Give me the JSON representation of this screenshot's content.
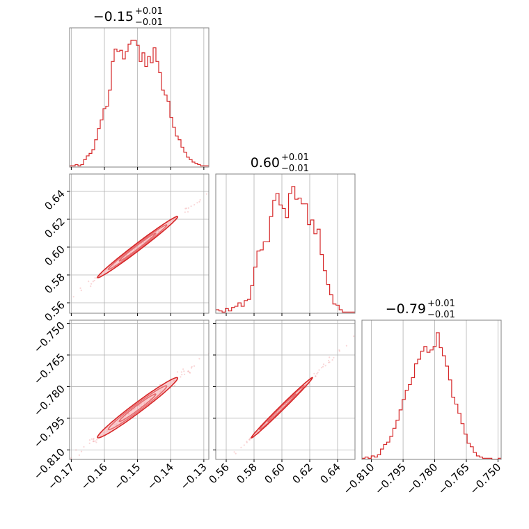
{
  "chart_data": {
    "type": "corner",
    "series_color": "#d62728",
    "parameters": [
      {
        "title_main": "−0.15",
        "title_sup": "+0.01",
        "title_sub": "−0.01",
        "median": -0.15,
        "sigma": 0.0055,
        "range": [
          -0.1705,
          -0.1285
        ],
        "ticks": [
          -0.17,
          -0.16,
          -0.15,
          -0.14,
          -0.13
        ],
        "tick_labels": [
          "−0.17",
          "−0.16",
          "−0.15",
          "−0.14",
          "−0.13"
        ],
        "hist": [
          1,
          1,
          2,
          1,
          2,
          6,
          9,
          11,
          14,
          22,
          31,
          38,
          47,
          49,
          62,
          85,
          95,
          93,
          94,
          87,
          93,
          99,
          102,
          102,
          98,
          85,
          92,
          81,
          89,
          84,
          96,
          85,
          76,
          62,
          58,
          53,
          40,
          32,
          25,
          22,
          16,
          12,
          8,
          6,
          4,
          3,
          2,
          1,
          1,
          1
        ]
      },
      {
        "title_main": "0.60",
        "title_sup": "+0.01",
        "title_sub": "−0.01",
        "median": 0.6,
        "sigma": 0.01,
        "range": [
          0.5525,
          0.6525
        ],
        "ticks": [
          0.56,
          0.58,
          0.6,
          0.62,
          0.64
        ],
        "tick_labels": [
          "0.56",
          "0.58",
          "0.60",
          "0.62",
          "0.64"
        ],
        "y_ticks": [
          0.56,
          0.58,
          0.6,
          0.62,
          0.64
        ],
        "hist": [
          3,
          2,
          1,
          4,
          2,
          5,
          6,
          9,
          6,
          11,
          12,
          24,
          40,
          54,
          55,
          62,
          62,
          84,
          98,
          104,
          94,
          91,
          83,
          104,
          110,
          99,
          100,
          95,
          95,
          77,
          81,
          69,
          73,
          51,
          37,
          25,
          16,
          8,
          7,
          3,
          1,
          1,
          1,
          1
        ]
      },
      {
        "title_main": "−0.79",
        "title_sup": "+0.01",
        "title_sub": "−0.01",
        "median": -0.79,
        "sigma": 0.0065,
        "range": [
          -0.8145,
          -0.7485
        ],
        "ticks": [
          -0.81,
          -0.795,
          -0.78,
          -0.765,
          -0.75
        ],
        "tick_labels": [
          "−0.810",
          "−0.795",
          "−0.780",
          "−0.765",
          "−0.750"
        ],
        "hist": [
          1,
          2,
          1,
          3,
          2,
          4,
          9,
          13,
          15,
          20,
          27,
          34,
          43,
          52,
          60,
          65,
          71,
          83,
          87,
          94,
          98,
          93,
          95,
          98,
          110,
          97,
          90,
          81,
          69,
          54,
          48,
          40,
          31,
          22,
          14,
          11,
          6,
          3,
          2,
          1,
          1,
          1,
          0,
          0,
          1
        ]
      }
    ],
    "y_tick_labels_row1": [
      "0.56",
      "0.58",
      "0.60",
      "0.62",
      "0.64"
    ],
    "y_tick_labels_row2": [
      "−0.810",
      "−0.795",
      "−0.780",
      "−0.765",
      "−0.750"
    ],
    "correlations": {
      "p0_p1": 0.99,
      "p0_p2": 0.98,
      "p1_p2": 0.995
    },
    "grid": true
  }
}
